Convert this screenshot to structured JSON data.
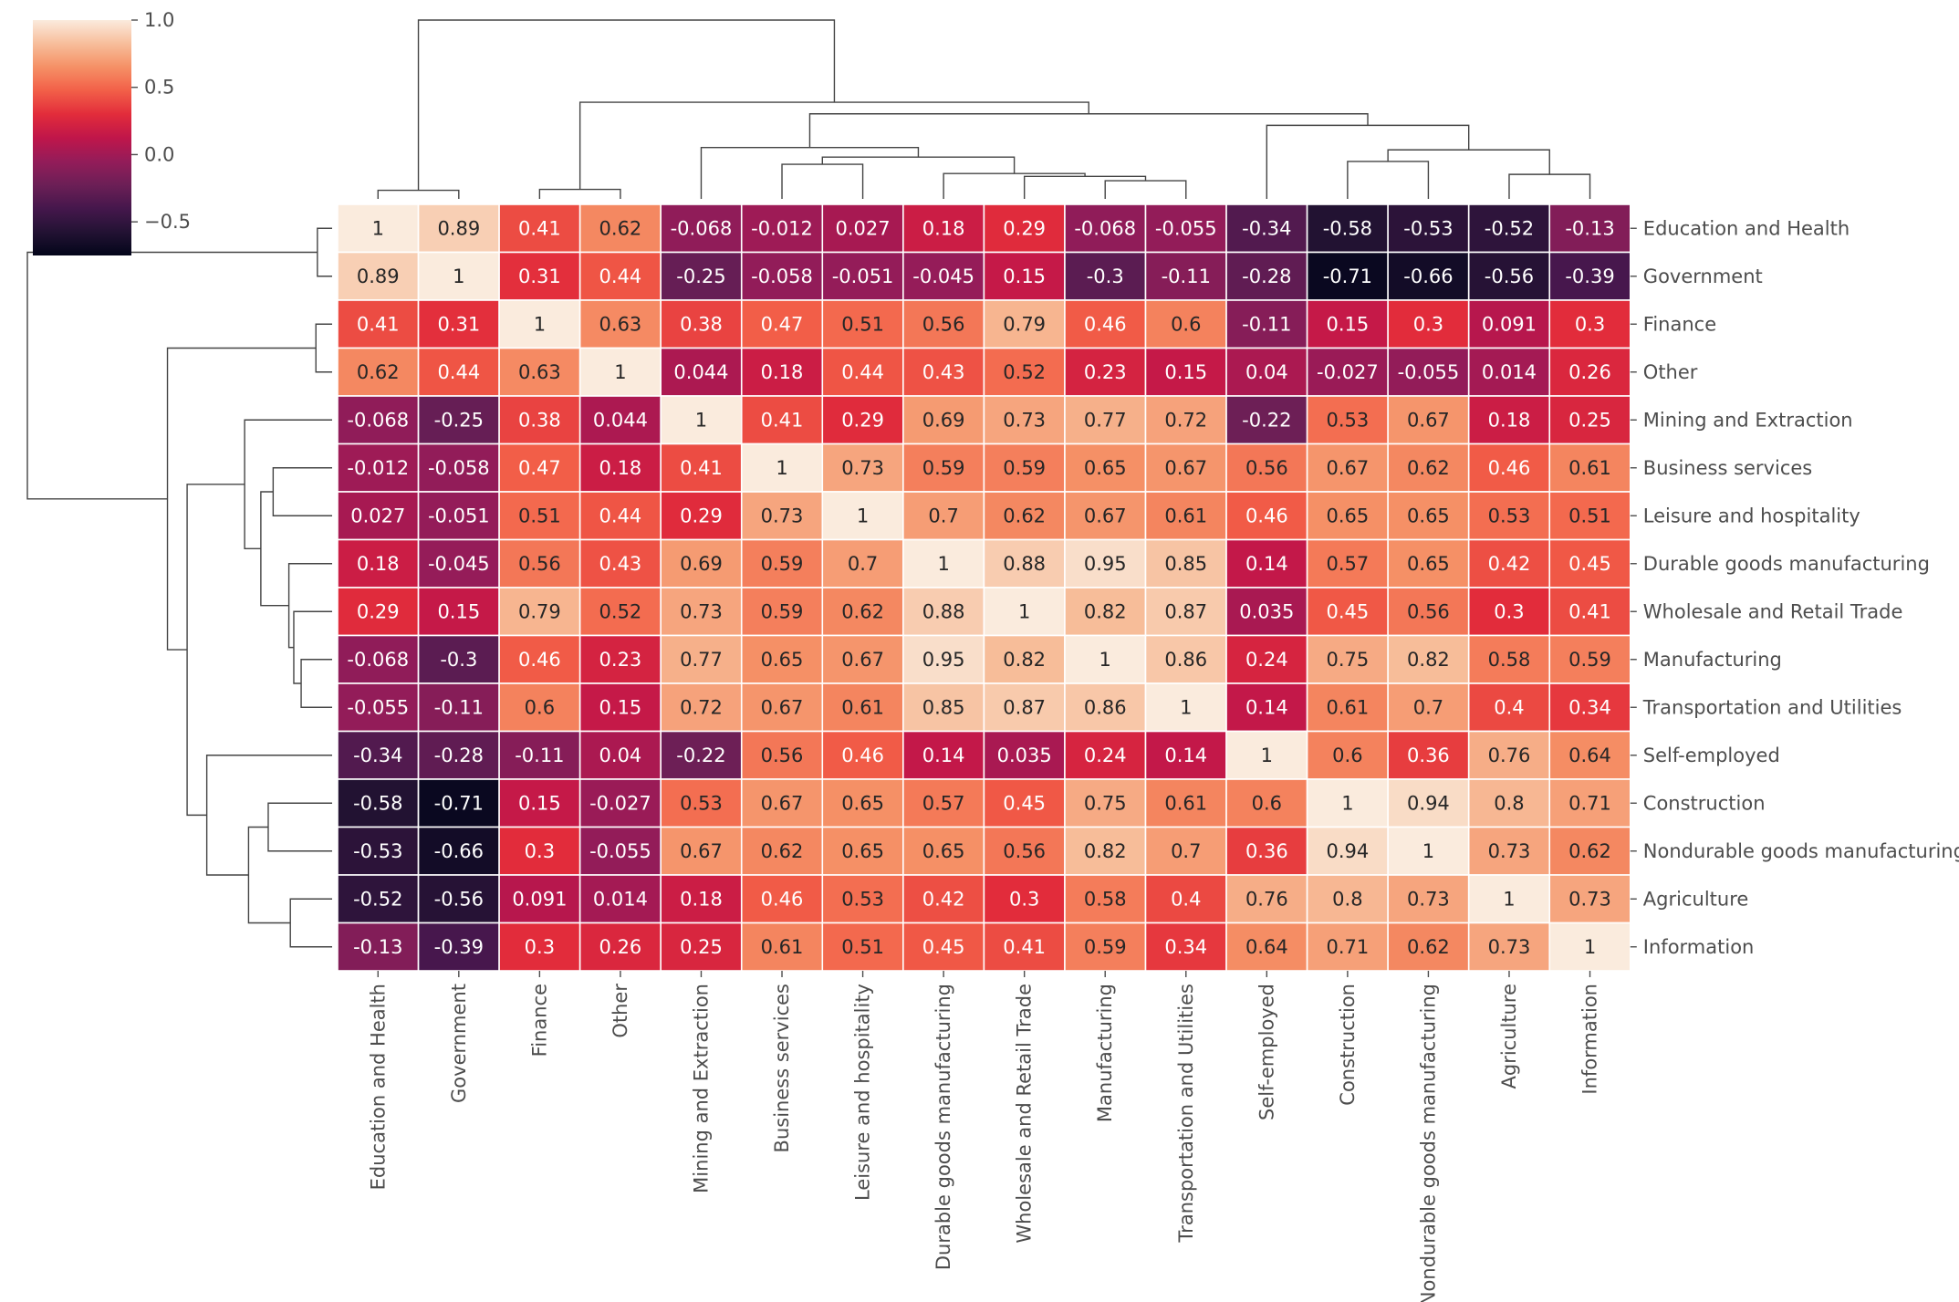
{
  "chart_data": {
    "type": "heatmap",
    "subtype": "clustermap",
    "labels": [
      "Education and Health",
      "Government",
      "Finance",
      "Other",
      "Mining and Extraction",
      "Business services",
      "Leisure and hospitality",
      "Durable goods manufacturing",
      "Wholesale and Retail Trade",
      "Manufacturing",
      "Transportation and Utilities",
      "Self-employed",
      "Construction",
      "Nondurable goods manufacturing",
      "Agriculture",
      "Information"
    ],
    "values": [
      [
        1,
        0.89,
        0.41,
        0.62,
        -0.068,
        -0.012,
        0.027,
        0.18,
        0.29,
        -0.068,
        -0.055,
        -0.34,
        -0.58,
        -0.53,
        -0.52,
        -0.13
      ],
      [
        0.89,
        1,
        0.31,
        0.44,
        -0.25,
        -0.058,
        -0.051,
        -0.045,
        0.15,
        -0.3,
        -0.11,
        -0.28,
        -0.71,
        -0.66,
        -0.56,
        -0.39
      ],
      [
        0.41,
        0.31,
        1,
        0.63,
        0.38,
        0.47,
        0.51,
        0.56,
        0.79,
        0.46,
        0.6,
        -0.11,
        0.15,
        0.3,
        0.091,
        0.3
      ],
      [
        0.62,
        0.44,
        0.63,
        1,
        0.044,
        0.18,
        0.44,
        0.43,
        0.52,
        0.23,
        0.15,
        0.04,
        -0.027,
        -0.055,
        0.014,
        0.26
      ],
      [
        -0.068,
        -0.25,
        0.38,
        0.044,
        1,
        0.41,
        0.29,
        0.69,
        0.73,
        0.77,
        0.72,
        -0.22,
        0.53,
        0.67,
        0.18,
        0.25
      ],
      [
        -0.012,
        -0.058,
        0.47,
        0.18,
        0.41,
        1,
        0.73,
        0.59,
        0.59,
        0.65,
        0.67,
        0.56,
        0.67,
        0.62,
        0.46,
        0.61
      ],
      [
        0.027,
        -0.051,
        0.51,
        0.44,
        0.29,
        0.73,
        1,
        0.7,
        0.62,
        0.67,
        0.61,
        0.46,
        0.65,
        0.65,
        0.53,
        0.51
      ],
      [
        0.18,
        -0.045,
        0.56,
        0.43,
        0.69,
        0.59,
        0.7,
        1,
        0.88,
        0.95,
        0.85,
        0.14,
        0.57,
        0.65,
        0.42,
        0.45
      ],
      [
        0.29,
        0.15,
        0.79,
        0.52,
        0.73,
        0.59,
        0.62,
        0.88,
        1,
        0.82,
        0.87,
        0.035,
        0.45,
        0.56,
        0.3,
        0.41
      ],
      [
        -0.068,
        -0.3,
        0.46,
        0.23,
        0.77,
        0.65,
        0.67,
        0.95,
        0.82,
        1,
        0.86,
        0.24,
        0.75,
        0.82,
        0.58,
        0.59
      ],
      [
        -0.055,
        -0.11,
        0.6,
        0.15,
        0.72,
        0.67,
        0.61,
        0.85,
        0.87,
        0.86,
        1,
        0.14,
        0.61,
        0.7,
        0.4,
        0.34
      ],
      [
        -0.34,
        -0.28,
        -0.11,
        0.04,
        -0.22,
        0.56,
        0.46,
        0.14,
        0.035,
        0.24,
        0.14,
        1,
        0.6,
        0.36,
        0.76,
        0.64
      ],
      [
        -0.58,
        -0.71,
        0.15,
        -0.027,
        0.53,
        0.67,
        0.65,
        0.57,
        0.45,
        0.75,
        0.61,
        0.6,
        1,
        0.94,
        0.8,
        0.71
      ],
      [
        -0.53,
        -0.66,
        0.3,
        -0.055,
        0.67,
        0.62,
        0.65,
        0.65,
        0.56,
        0.82,
        0.7,
        0.36,
        0.94,
        1,
        0.73,
        0.62
      ],
      [
        -0.52,
        -0.56,
        0.091,
        0.014,
        0.18,
        0.46,
        0.53,
        0.42,
        0.3,
        0.58,
        0.4,
        0.76,
        0.8,
        0.73,
        1,
        0.73
      ],
      [
        -0.13,
        -0.39,
        0.3,
        0.26,
        0.25,
        0.61,
        0.51,
        0.45,
        0.41,
        0.59,
        0.34,
        0.64,
        0.71,
        0.62,
        0.73,
        1
      ]
    ],
    "colormap": "rocket",
    "vmin": -0.75,
    "vmax": 1.0,
    "colorbar": {
      "ticks": [
        1.0,
        0.5,
        0.0,
        -0.5
      ],
      "tick_labels": [
        "1.0",
        "0.5",
        "0.0",
        "−0.5"
      ],
      "placement": "top-left"
    },
    "annotated": true,
    "dendrograms": [
      "top",
      "left"
    ]
  }
}
